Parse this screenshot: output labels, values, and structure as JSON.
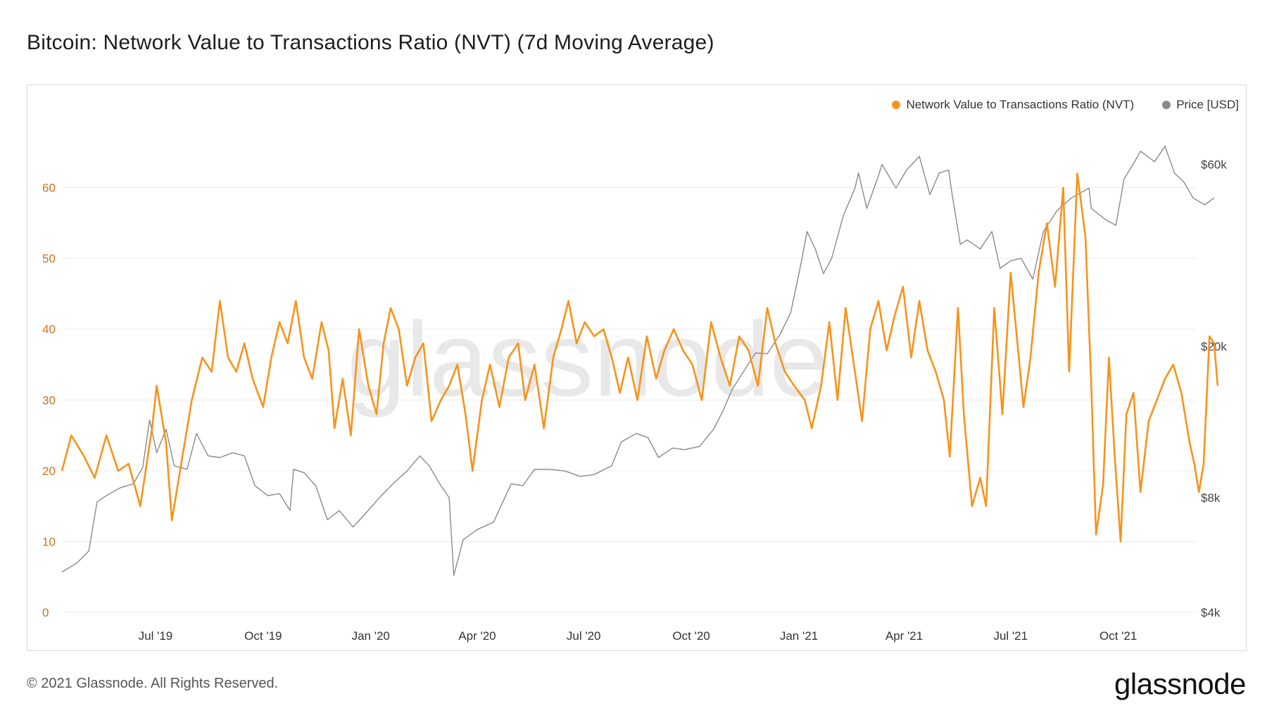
{
  "title": "Bitcoin: Network Value to Transactions Ratio (NVT) (7d Moving Average)",
  "footer": "© 2021 Glassnode. All Rights Reserved.",
  "brand": "glassnode",
  "watermark": "glassnode",
  "colors": {
    "nvt": "#f7931a",
    "price": "#8a8a8a",
    "grid": "#ececec"
  },
  "legend": [
    {
      "name": "Network Value to Transactions Ratio (NVT)",
      "color": "#f7931a"
    },
    {
      "name": "Price [USD]",
      "color": "#8a8a8a"
    }
  ],
  "chart_data": {
    "type": "line",
    "grid": true,
    "legend_position": "top-right",
    "x_range": [
      "2019-04-12",
      "2021-12-07"
    ],
    "x_ticks": [
      {
        "date": "2019-07-01",
        "label": "Jul '19"
      },
      {
        "date": "2019-10-01",
        "label": "Oct '19"
      },
      {
        "date": "2020-01-01",
        "label": "Jan '20"
      },
      {
        "date": "2020-04-01",
        "label": "Apr '20"
      },
      {
        "date": "2020-07-01",
        "label": "Jul '20"
      },
      {
        "date": "2020-10-01",
        "label": "Oct '20"
      },
      {
        "date": "2021-01-01",
        "label": "Jan '21"
      },
      {
        "date": "2021-04-01",
        "label": "Apr '21"
      },
      {
        "date": "2021-07-01",
        "label": "Jul '21"
      },
      {
        "date": "2021-10-01",
        "label": "Oct '21"
      }
    ],
    "y_left": {
      "min": 0,
      "max": 70,
      "ticks": [
        0,
        10,
        20,
        30,
        40,
        50,
        60
      ]
    },
    "y_right": {
      "scale": "log",
      "min": 4000,
      "max": 80000,
      "ticks": [
        {
          "value": 4000,
          "label": "$4k"
        },
        {
          "value": 8000,
          "label": "$8k"
        },
        {
          "value": 20000,
          "label": "$20k"
        },
        {
          "value": 60000,
          "label": "$60k"
        }
      ]
    },
    "series": [
      {
        "name": "Network Value to Transactions Ratio (NVT)",
        "axis": "left",
        "points": [
          [
            "2019-04-12",
            20
          ],
          [
            "2019-04-20",
            25
          ],
          [
            "2019-05-01",
            22
          ],
          [
            "2019-05-10",
            19
          ],
          [
            "2019-05-20",
            25
          ],
          [
            "2019-05-30",
            20
          ],
          [
            "2019-06-08",
            21
          ],
          [
            "2019-06-18",
            15
          ],
          [
            "2019-06-28",
            26
          ],
          [
            "2019-07-02",
            32
          ],
          [
            "2019-07-10",
            24
          ],
          [
            "2019-07-15",
            13
          ],
          [
            "2019-07-22",
            20
          ],
          [
            "2019-08-01",
            30
          ],
          [
            "2019-08-10",
            36
          ],
          [
            "2019-08-18",
            34
          ],
          [
            "2019-08-25",
            44
          ],
          [
            "2019-09-01",
            36
          ],
          [
            "2019-09-08",
            34
          ],
          [
            "2019-09-15",
            38
          ],
          [
            "2019-09-22",
            33
          ],
          [
            "2019-10-01",
            29
          ],
          [
            "2019-10-08",
            36
          ],
          [
            "2019-10-15",
            41
          ],
          [
            "2019-10-22",
            38
          ],
          [
            "2019-10-29",
            44
          ],
          [
            "2019-11-05",
            36
          ],
          [
            "2019-11-12",
            33
          ],
          [
            "2019-11-20",
            41
          ],
          [
            "2019-11-26",
            37
          ],
          [
            "2019-12-01",
            26
          ],
          [
            "2019-12-08",
            33
          ],
          [
            "2019-12-15",
            25
          ],
          [
            "2019-12-22",
            40
          ],
          [
            "2019-12-30",
            32
          ],
          [
            "2020-01-06",
            28
          ],
          [
            "2020-01-12",
            38
          ],
          [
            "2020-01-18",
            43
          ],
          [
            "2020-01-25",
            40
          ],
          [
            "2020-02-01",
            32
          ],
          [
            "2020-02-08",
            36
          ],
          [
            "2020-02-15",
            38
          ],
          [
            "2020-02-22",
            27
          ],
          [
            "2020-03-01",
            30
          ],
          [
            "2020-03-08",
            32
          ],
          [
            "2020-03-15",
            35
          ],
          [
            "2020-03-22",
            28
          ],
          [
            "2020-03-28",
            20
          ],
          [
            "2020-04-05",
            30
          ],
          [
            "2020-04-12",
            35
          ],
          [
            "2020-04-20",
            29
          ],
          [
            "2020-04-28",
            36
          ],
          [
            "2020-05-06",
            38
          ],
          [
            "2020-05-12",
            30
          ],
          [
            "2020-05-20",
            35
          ],
          [
            "2020-05-28",
            26
          ],
          [
            "2020-06-05",
            36
          ],
          [
            "2020-06-12",
            40
          ],
          [
            "2020-06-18",
            44
          ],
          [
            "2020-06-25",
            38
          ],
          [
            "2020-07-02",
            41
          ],
          [
            "2020-07-10",
            39
          ],
          [
            "2020-07-18",
            40
          ],
          [
            "2020-07-25",
            36
          ],
          [
            "2020-08-01",
            31
          ],
          [
            "2020-08-08",
            36
          ],
          [
            "2020-08-16",
            30
          ],
          [
            "2020-08-24",
            39
          ],
          [
            "2020-09-01",
            33
          ],
          [
            "2020-09-08",
            37
          ],
          [
            "2020-09-16",
            40
          ],
          [
            "2020-09-24",
            37
          ],
          [
            "2020-10-02",
            35
          ],
          [
            "2020-10-10",
            30
          ],
          [
            "2020-10-18",
            41
          ],
          [
            "2020-10-26",
            36
          ],
          [
            "2020-11-03",
            32
          ],
          [
            "2020-11-11",
            39
          ],
          [
            "2020-11-19",
            37
          ],
          [
            "2020-11-27",
            32
          ],
          [
            "2020-12-05",
            43
          ],
          [
            "2020-12-12",
            38
          ],
          [
            "2020-12-20",
            34
          ],
          [
            "2020-12-28",
            32
          ],
          [
            "2021-01-06",
            30
          ],
          [
            "2021-01-12",
            26
          ],
          [
            "2021-01-20",
            32
          ],
          [
            "2021-01-27",
            41
          ],
          [
            "2021-02-03",
            30
          ],
          [
            "2021-02-10",
            43
          ],
          [
            "2021-02-17",
            35
          ],
          [
            "2021-02-24",
            27
          ],
          [
            "2021-03-03",
            40
          ],
          [
            "2021-03-10",
            44
          ],
          [
            "2021-03-17",
            37
          ],
          [
            "2021-03-24",
            42
          ],
          [
            "2021-03-31",
            46
          ],
          [
            "2021-04-07",
            36
          ],
          [
            "2021-04-14",
            44
          ],
          [
            "2021-04-21",
            37
          ],
          [
            "2021-04-28",
            34
          ],
          [
            "2021-05-05",
            30
          ],
          [
            "2021-05-10",
            22
          ],
          [
            "2021-05-17",
            43
          ],
          [
            "2021-05-22",
            28
          ],
          [
            "2021-05-29",
            15
          ],
          [
            "2021-06-05",
            19
          ],
          [
            "2021-06-10",
            15
          ],
          [
            "2021-06-17",
            43
          ],
          [
            "2021-06-24",
            28
          ],
          [
            "2021-07-01",
            48
          ],
          [
            "2021-07-08",
            36
          ],
          [
            "2021-07-12",
            29
          ],
          [
            "2021-07-18",
            36
          ],
          [
            "2021-07-25",
            48
          ],
          [
            "2021-08-01",
            55
          ],
          [
            "2021-08-08",
            46
          ],
          [
            "2021-08-15",
            60
          ],
          [
            "2021-08-20",
            34
          ],
          [
            "2021-08-27",
            62
          ],
          [
            "2021-09-03",
            53
          ],
          [
            "2021-09-08",
            32
          ],
          [
            "2021-09-12",
            11
          ],
          [
            "2021-09-18",
            18
          ],
          [
            "2021-09-23",
            36
          ],
          [
            "2021-09-28",
            22
          ],
          [
            "2021-10-03",
            10
          ],
          [
            "2021-10-08",
            28
          ],
          [
            "2021-10-14",
            31
          ],
          [
            "2021-10-20",
            17
          ],
          [
            "2021-10-27",
            27
          ],
          [
            "2021-11-03",
            30
          ],
          [
            "2021-11-10",
            33
          ],
          [
            "2021-11-17",
            35
          ],
          [
            "2021-11-24",
            31
          ],
          [
            "2021-12-01",
            24
          ],
          [
            "2021-12-05",
            21
          ],
          [
            "2021-12-09",
            17
          ],
          [
            "2021-12-13",
            21
          ],
          [
            "2021-12-18",
            39
          ],
          [
            "2021-12-22",
            38
          ],
          [
            "2021-12-25",
            32
          ]
        ]
      },
      {
        "name": "Price [USD]",
        "axis": "right",
        "points": [
          [
            "2019-04-12",
            5100
          ],
          [
            "2019-04-25",
            5400
          ],
          [
            "2019-05-05",
            5800
          ],
          [
            "2019-05-12",
            7800
          ],
          [
            "2019-05-20",
            8100
          ],
          [
            "2019-06-01",
            8500
          ],
          [
            "2019-06-12",
            8700
          ],
          [
            "2019-06-20",
            9600
          ],
          [
            "2019-06-26",
            12800
          ],
          [
            "2019-07-02",
            10500
          ],
          [
            "2019-07-10",
            12100
          ],
          [
            "2019-07-17",
            9700
          ],
          [
            "2019-07-28",
            9500
          ],
          [
            "2019-08-05",
            11800
          ],
          [
            "2019-08-15",
            10300
          ],
          [
            "2019-08-25",
            10200
          ],
          [
            "2019-09-05",
            10500
          ],
          [
            "2019-09-15",
            10300
          ],
          [
            "2019-09-24",
            8600
          ],
          [
            "2019-10-05",
            8100
          ],
          [
            "2019-10-15",
            8200
          ],
          [
            "2019-10-24",
            7400
          ],
          [
            "2019-10-27",
            9500
          ],
          [
            "2019-11-05",
            9300
          ],
          [
            "2019-11-15",
            8600
          ],
          [
            "2019-11-25",
            7000
          ],
          [
            "2019-12-05",
            7400
          ],
          [
            "2019-12-17",
            6700
          ],
          [
            "2019-12-28",
            7300
          ],
          [
            "2020-01-10",
            8100
          ],
          [
            "2020-01-20",
            8700
          ],
          [
            "2020-02-01",
            9400
          ],
          [
            "2020-02-12",
            10300
          ],
          [
            "2020-02-20",
            9700
          ],
          [
            "2020-03-01",
            8600
          ],
          [
            "2020-03-08",
            8000
          ],
          [
            "2020-03-12",
            5000
          ],
          [
            "2020-03-20",
            6200
          ],
          [
            "2020-04-01",
            6600
          ],
          [
            "2020-04-15",
            6900
          ],
          [
            "2020-04-30",
            8700
          ],
          [
            "2020-05-10",
            8600
          ],
          [
            "2020-05-20",
            9500
          ],
          [
            "2020-06-01",
            9500
          ],
          [
            "2020-06-15",
            9400
          ],
          [
            "2020-06-28",
            9100
          ],
          [
            "2020-07-10",
            9200
          ],
          [
            "2020-07-25",
            9700
          ],
          [
            "2020-08-02",
            11200
          ],
          [
            "2020-08-15",
            11800
          ],
          [
            "2020-08-25",
            11500
          ],
          [
            "2020-09-03",
            10200
          ],
          [
            "2020-09-15",
            10800
          ],
          [
            "2020-09-25",
            10700
          ],
          [
            "2020-10-08",
            10900
          ],
          [
            "2020-10-20",
            12100
          ],
          [
            "2020-10-28",
            13500
          ],
          [
            "2020-11-05",
            15400
          ],
          [
            "2020-11-18",
            17800
          ],
          [
            "2020-11-25",
            19200
          ],
          [
            "2020-12-05",
            19100
          ],
          [
            "2020-12-16",
            21500
          ],
          [
            "2020-12-25",
            24500
          ],
          [
            "2021-01-02",
            32000
          ],
          [
            "2021-01-08",
            40000
          ],
          [
            "2021-01-15",
            36000
          ],
          [
            "2021-01-22",
            31000
          ],
          [
            "2021-01-29",
            34000
          ],
          [
            "2021-02-08",
            44000
          ],
          [
            "2021-02-18",
            52000
          ],
          [
            "2021-02-21",
            57000
          ],
          [
            "2021-02-28",
            46000
          ],
          [
            "2021-03-10",
            56000
          ],
          [
            "2021-03-13",
            60000
          ],
          [
            "2021-03-25",
            52000
          ],
          [
            "2021-04-03",
            58000
          ],
          [
            "2021-04-14",
            63000
          ],
          [
            "2021-04-23",
            50000
          ],
          [
            "2021-05-01",
            57000
          ],
          [
            "2021-05-09",
            58000
          ],
          [
            "2021-05-12",
            50000
          ],
          [
            "2021-05-19",
            37000
          ],
          [
            "2021-05-25",
            38000
          ],
          [
            "2021-06-05",
            36000
          ],
          [
            "2021-06-15",
            40000
          ],
          [
            "2021-06-22",
            32000
          ],
          [
            "2021-07-01",
            33500
          ],
          [
            "2021-07-10",
            34000
          ],
          [
            "2021-07-20",
            30000
          ],
          [
            "2021-07-29",
            40000
          ],
          [
            "2021-08-10",
            45500
          ],
          [
            "2021-08-22",
            49000
          ],
          [
            "2021-09-06",
            52000
          ],
          [
            "2021-09-08",
            46000
          ],
          [
            "2021-09-20",
            43000
          ],
          [
            "2021-09-29",
            41500
          ],
          [
            "2021-10-06",
            55000
          ],
          [
            "2021-10-15",
            61000
          ],
          [
            "2021-10-20",
            65000
          ],
          [
            "2021-11-01",
            61000
          ],
          [
            "2021-11-10",
            67000
          ],
          [
            "2021-11-18",
            57000
          ],
          [
            "2021-11-26",
            54000
          ],
          [
            "2021-12-04",
            49000
          ],
          [
            "2021-12-14",
            47000
          ],
          [
            "2021-12-22",
            49000
          ]
        ]
      }
    ]
  }
}
